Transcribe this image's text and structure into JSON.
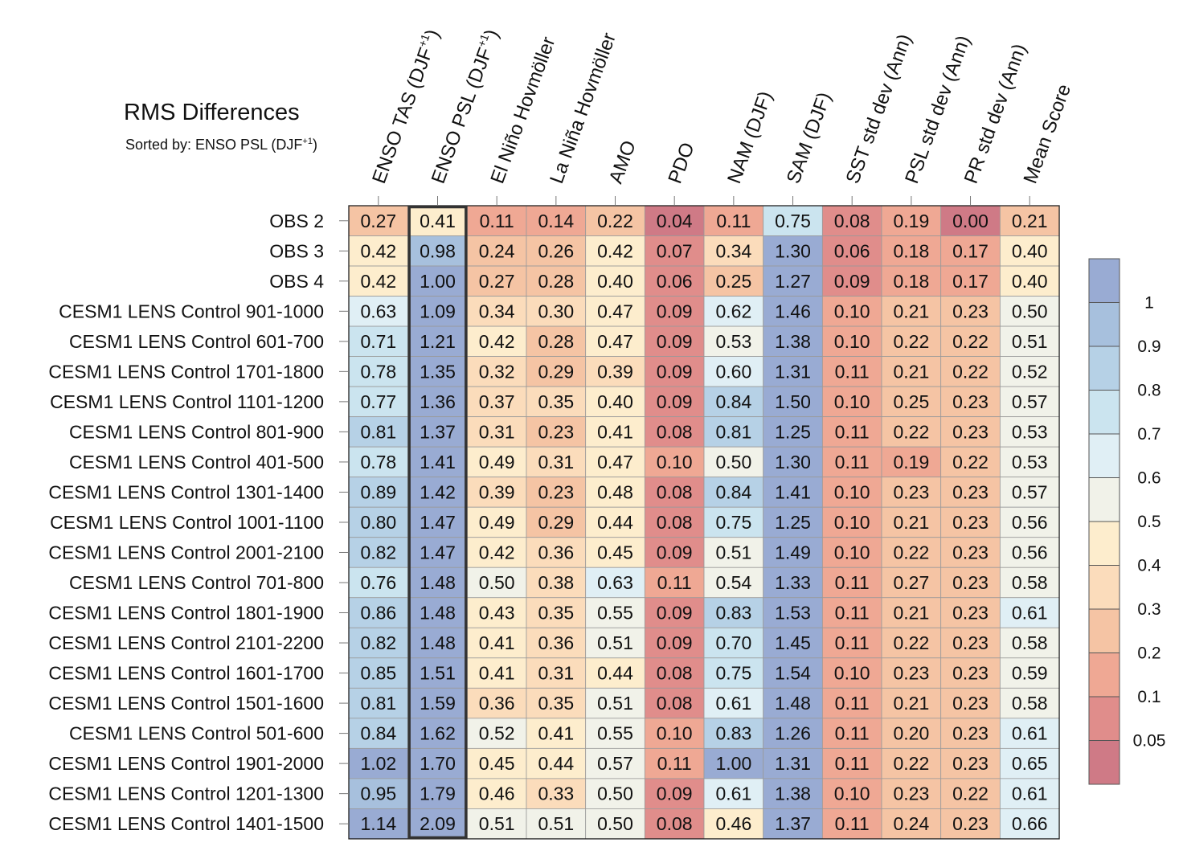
{
  "chart_data": {
    "type": "heatmap",
    "title": "RMS Differences",
    "subtitle_prefix": "Sorted by: ENSO PSL (DJF",
    "subtitle_sup": "+1",
    "subtitle_suffix": ")",
    "sorted_column_index": 1,
    "columns": [
      {
        "label": "ENSO TAS (DJF",
        "sup": "+1",
        "tail": ")"
      },
      {
        "label": "ENSO PSL (DJF",
        "sup": "+1",
        "tail": ")"
      },
      {
        "label": "El Niño Hovmöller",
        "sup": "",
        "tail": ""
      },
      {
        "label": "La Niña Hovmöller",
        "sup": "",
        "tail": ""
      },
      {
        "label": "AMO",
        "sup": "",
        "tail": ""
      },
      {
        "label": "PDO",
        "sup": "",
        "tail": ""
      },
      {
        "label": "NAM (DJF)",
        "sup": "",
        "tail": ""
      },
      {
        "label": "SAM (DJF)",
        "sup": "",
        "tail": ""
      },
      {
        "label": "SST std dev (Ann)",
        "sup": "",
        "tail": ""
      },
      {
        "label": "PSL std dev (Ann)",
        "sup": "",
        "tail": ""
      },
      {
        "label": "PR std dev (Ann)",
        "sup": "",
        "tail": ""
      },
      {
        "label": "Mean Score",
        "sup": "",
        "tail": ""
      }
    ],
    "rows": [
      "OBS 2",
      "OBS 3",
      "OBS 4",
      "CESM1 LENS Control 901-1000",
      "CESM1 LENS Control 601-700",
      "CESM1 LENS Control 1701-1800",
      "CESM1 LENS Control 1101-1200",
      "CESM1 LENS Control 801-900",
      "CESM1 LENS Control 401-500",
      "CESM1 LENS Control 1301-1400",
      "CESM1 LENS Control 1001-1100",
      "CESM1 LENS Control 2001-2100",
      "CESM1 LENS Control 701-800",
      "CESM1 LENS Control 1801-1900",
      "CESM1 LENS Control 2101-2200",
      "CESM1 LENS Control 1601-1700",
      "CESM1 LENS Control 1501-1600",
      "CESM1 LENS Control 501-600",
      "CESM1 LENS Control 1901-2000",
      "CESM1 LENS Control 1201-1300",
      "CESM1 LENS Control 1401-1500"
    ],
    "values": [
      [
        "0.27",
        "0.41",
        "0.11",
        "0.14",
        "0.22",
        "0.04",
        "0.11",
        "0.75",
        "0.08",
        "0.19",
        "0.00",
        "0.21"
      ],
      [
        "0.42",
        "0.98",
        "0.24",
        "0.26",
        "0.42",
        "0.07",
        "0.34",
        "1.30",
        "0.06",
        "0.18",
        "0.17",
        "0.40"
      ],
      [
        "0.42",
        "1.00",
        "0.27",
        "0.28",
        "0.40",
        "0.06",
        "0.25",
        "1.27",
        "0.09",
        "0.18",
        "0.17",
        "0.40"
      ],
      [
        "0.63",
        "1.09",
        "0.34",
        "0.30",
        "0.47",
        "0.09",
        "0.62",
        "1.46",
        "0.10",
        "0.21",
        "0.23",
        "0.50"
      ],
      [
        "0.71",
        "1.21",
        "0.42",
        "0.28",
        "0.47",
        "0.09",
        "0.53",
        "1.38",
        "0.10",
        "0.22",
        "0.22",
        "0.51"
      ],
      [
        "0.78",
        "1.35",
        "0.32",
        "0.29",
        "0.39",
        "0.09",
        "0.60",
        "1.31",
        "0.11",
        "0.21",
        "0.22",
        "0.52"
      ],
      [
        "0.77",
        "1.36",
        "0.37",
        "0.35",
        "0.40",
        "0.09",
        "0.84",
        "1.50",
        "0.10",
        "0.25",
        "0.23",
        "0.57"
      ],
      [
        "0.81",
        "1.37",
        "0.31",
        "0.23",
        "0.41",
        "0.08",
        "0.81",
        "1.25",
        "0.11",
        "0.22",
        "0.23",
        "0.53"
      ],
      [
        "0.78",
        "1.41",
        "0.49",
        "0.31",
        "0.47",
        "0.10",
        "0.50",
        "1.30",
        "0.11",
        "0.19",
        "0.22",
        "0.53"
      ],
      [
        "0.89",
        "1.42",
        "0.39",
        "0.23",
        "0.48",
        "0.08",
        "0.84",
        "1.41",
        "0.10",
        "0.23",
        "0.23",
        "0.57"
      ],
      [
        "0.80",
        "1.47",
        "0.49",
        "0.29",
        "0.44",
        "0.08",
        "0.75",
        "1.25",
        "0.10",
        "0.21",
        "0.23",
        "0.56"
      ],
      [
        "0.82",
        "1.47",
        "0.42",
        "0.36",
        "0.45",
        "0.09",
        "0.51",
        "1.49",
        "0.10",
        "0.22",
        "0.23",
        "0.56"
      ],
      [
        "0.76",
        "1.48",
        "0.50",
        "0.38",
        "0.63",
        "0.11",
        "0.54",
        "1.33",
        "0.11",
        "0.27",
        "0.23",
        "0.58"
      ],
      [
        "0.86",
        "1.48",
        "0.43",
        "0.35",
        "0.55",
        "0.09",
        "0.83",
        "1.53",
        "0.11",
        "0.21",
        "0.23",
        "0.61"
      ],
      [
        "0.82",
        "1.48",
        "0.41",
        "0.36",
        "0.51",
        "0.09",
        "0.70",
        "1.45",
        "0.11",
        "0.22",
        "0.23",
        "0.58"
      ],
      [
        "0.85",
        "1.51",
        "0.41",
        "0.31",
        "0.44",
        "0.08",
        "0.75",
        "1.54",
        "0.10",
        "0.23",
        "0.23",
        "0.59"
      ],
      [
        "0.81",
        "1.59",
        "0.36",
        "0.35",
        "0.51",
        "0.08",
        "0.61",
        "1.48",
        "0.11",
        "0.21",
        "0.23",
        "0.58"
      ],
      [
        "0.84",
        "1.62",
        "0.52",
        "0.41",
        "0.55",
        "0.10",
        "0.83",
        "1.26",
        "0.11",
        "0.20",
        "0.23",
        "0.61"
      ],
      [
        "1.02",
        "1.70",
        "0.45",
        "0.44",
        "0.57",
        "0.11",
        "1.00",
        "1.31",
        "0.11",
        "0.22",
        "0.23",
        "0.65"
      ],
      [
        "0.95",
        "1.79",
        "0.46",
        "0.33",
        "0.50",
        "0.09",
        "0.61",
        "1.38",
        "0.10",
        "0.23",
        "0.22",
        "0.61"
      ],
      [
        "1.14",
        "2.09",
        "0.51",
        "0.51",
        "0.50",
        "0.08",
        "0.46",
        "1.37",
        "0.11",
        "0.24",
        "0.23",
        "0.66"
      ]
    ],
    "colorbar": {
      "thresholds": [
        0.05,
        0.1,
        0.2,
        0.3,
        0.4,
        0.5,
        0.6,
        0.7,
        0.8,
        0.9,
        1
      ],
      "tick_labels": [
        "1",
        "0.9",
        "0.8",
        "0.7",
        "0.6",
        "0.5",
        "0.4",
        "0.3",
        "0.2",
        "0.1",
        "0.05"
      ],
      "colors": [
        "#cf7a86",
        "#e08d8b",
        "#efa894",
        "#f5c4a4",
        "#fbdcbb",
        "#fdedcd",
        "#f1f2e9",
        "#e0eff5",
        "#cbe4ef",
        "#b6d1e6",
        "#a7c0dd",
        "#99abd3"
      ]
    }
  }
}
